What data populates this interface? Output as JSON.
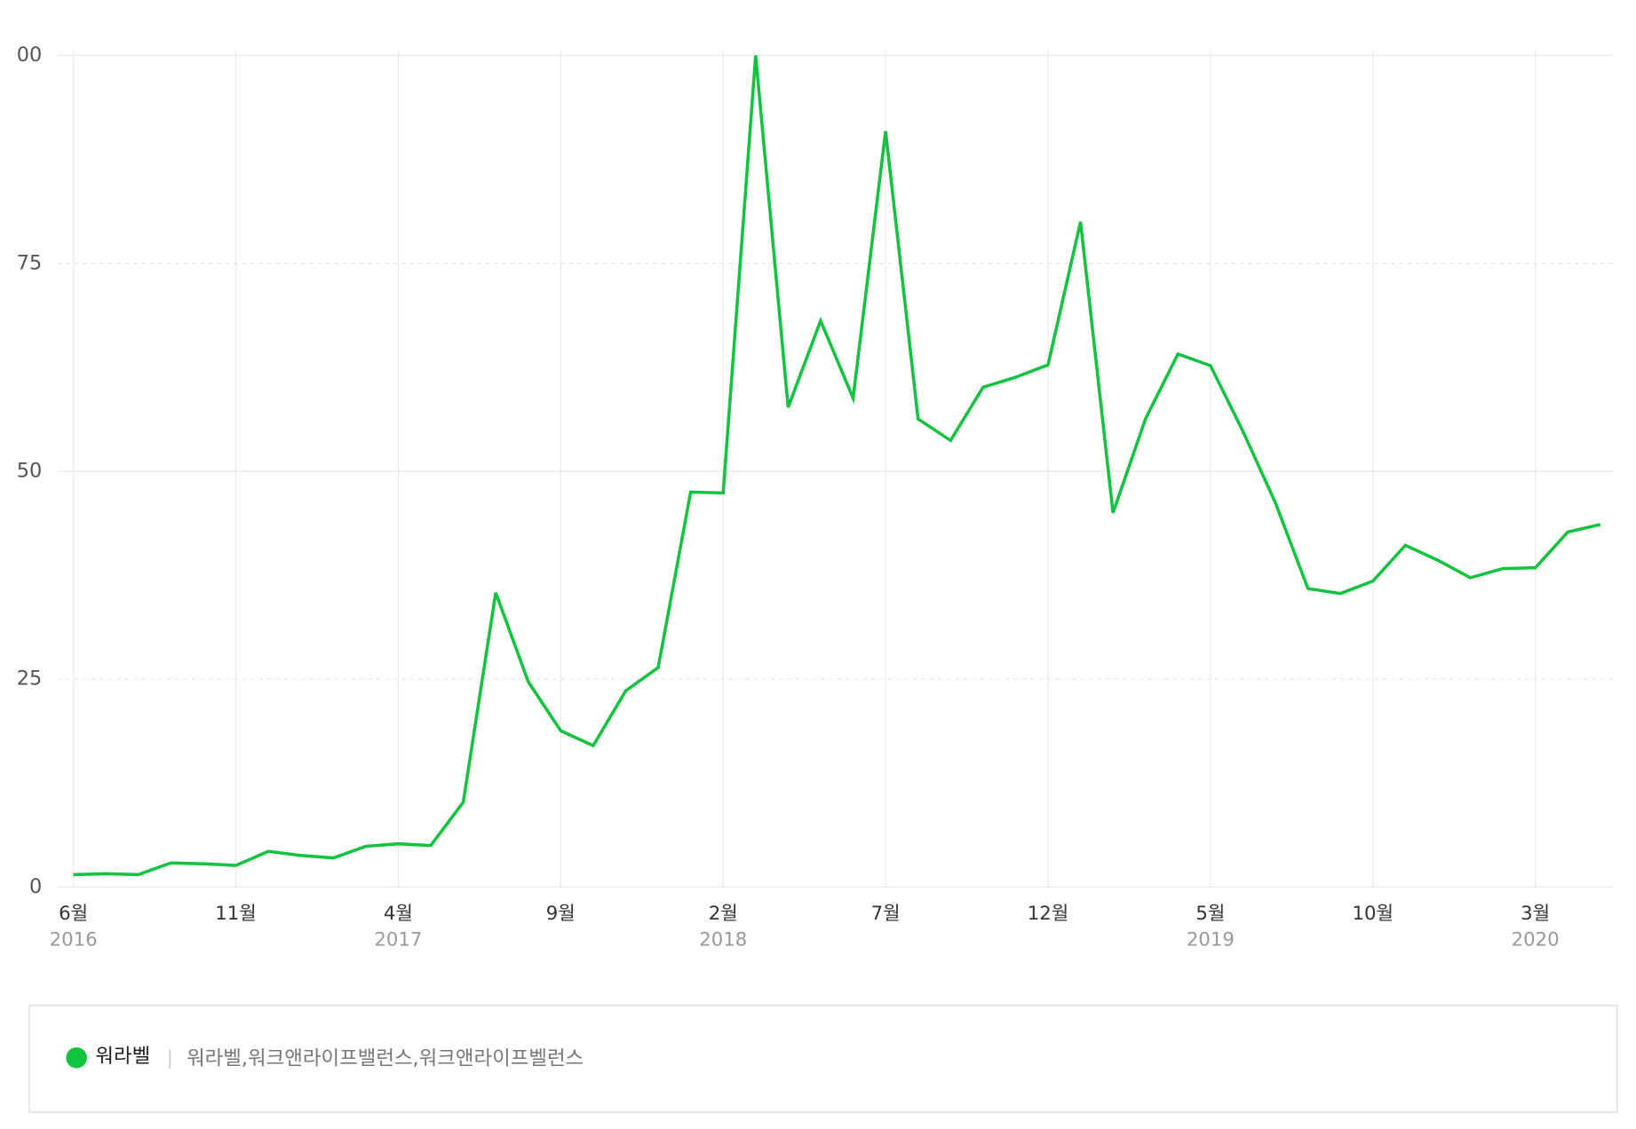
{
  "chart_data": {
    "type": "line",
    "categories": [
      "6월",
      null,
      null,
      null,
      null,
      "11월",
      null,
      null,
      null,
      null,
      "4월",
      null,
      null,
      null,
      null,
      "9월",
      null,
      null,
      null,
      null,
      "2월",
      null,
      null,
      null,
      null,
      "7월",
      null,
      null,
      null,
      null,
      "12월",
      null,
      null,
      null,
      null,
      "5월",
      null,
      null,
      null,
      null,
      "10월",
      null,
      null,
      null,
      null,
      "3월",
      null,
      null
    ],
    "category_years": [
      "2016",
      null,
      null,
      null,
      null,
      null,
      null,
      null,
      null,
      null,
      "2017",
      null,
      null,
      null,
      null,
      null,
      null,
      null,
      null,
      null,
      "2018",
      null,
      null,
      null,
      null,
      null,
      null,
      null,
      null,
      null,
      null,
      null,
      null,
      null,
      null,
      "2019",
      null,
      null,
      null,
      null,
      null,
      null,
      null,
      null,
      null,
      "2020",
      null,
      null
    ],
    "series": [
      {
        "name": "워라벨",
        "color": "#12c33f",
        "values": [
          1.5,
          1.6,
          1.5,
          2.9,
          2.8,
          2.6,
          4.3,
          3.8,
          3.5,
          4.9,
          5.2,
          5.0,
          10.2,
          35.4,
          24.7,
          18.8,
          17.0,
          23.6,
          26.4,
          47.5,
          47.4,
          100,
          57.7,
          68.1,
          58.8,
          90.9,
          56.3,
          53.7,
          60.1,
          61.3,
          62.8,
          80.0,
          45.0,
          56.3,
          64.1,
          62.7,
          54.8,
          46.2,
          35.9,
          35.3,
          36.8,
          41.1,
          39.3,
          37.2,
          38.3,
          38.4,
          42.7,
          43.6
        ]
      }
    ],
    "legend_keywords": "워라벨,워크앤라이프밸런스,워크앤라이프벨런스",
    "ylim": [
      0,
      100
    ],
    "yticks": [
      0,
      25,
      50,
      75,
      {
        "value": 100,
        "label": "00"
      }
    ],
    "grid": true
  }
}
